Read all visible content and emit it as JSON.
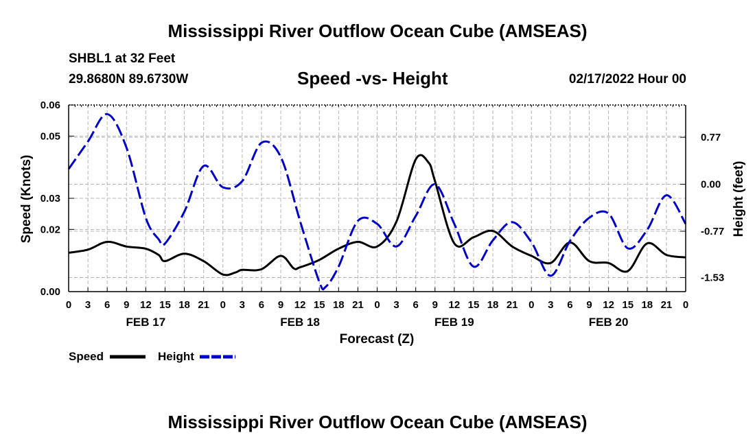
{
  "page": {
    "title_top": "Mississippi River Outflow Ocean Cube (AMSEAS)",
    "title_bottom": "Mississippi River Outflow Ocean Cube (AMSEAS)",
    "station_line": "SHBL1 at 32 Feet",
    "coords_line": "29.8680N  89.6730W",
    "date_line": "02/17/2022 Hour 00"
  },
  "chart_data": {
    "type": "line",
    "title": "Speed -vs- Height",
    "xlabel": "Forecast (Z)",
    "ylabel": "Speed (Knots)",
    "y2label": "Height (feet)",
    "x_hours": [
      0,
      96
    ],
    "x_ticks": [
      {
        "h": 0,
        "label": "0"
      },
      {
        "h": 3,
        "label": "3"
      },
      {
        "h": 6,
        "label": "6"
      },
      {
        "h": 9,
        "label": "9"
      },
      {
        "h": 12,
        "label": "12"
      },
      {
        "h": 15,
        "label": "15"
      },
      {
        "h": 18,
        "label": "18"
      },
      {
        "h": 21,
        "label": "21"
      },
      {
        "h": 24,
        "label": "0"
      },
      {
        "h": 27,
        "label": "3"
      },
      {
        "h": 30,
        "label": "6"
      },
      {
        "h": 33,
        "label": "9"
      },
      {
        "h": 36,
        "label": "12"
      },
      {
        "h": 39,
        "label": "15"
      },
      {
        "h": 42,
        "label": "18"
      },
      {
        "h": 45,
        "label": "21"
      },
      {
        "h": 48,
        "label": "0"
      },
      {
        "h": 51,
        "label": "3"
      },
      {
        "h": 54,
        "label": "6"
      },
      {
        "h": 57,
        "label": "9"
      },
      {
        "h": 60,
        "label": "12"
      },
      {
        "h": 63,
        "label": "15"
      },
      {
        "h": 66,
        "label": "18"
      },
      {
        "h": 69,
        "label": "21"
      },
      {
        "h": 72,
        "label": "0"
      },
      {
        "h": 75,
        "label": "3"
      },
      {
        "h": 78,
        "label": "6"
      },
      {
        "h": 81,
        "label": "9"
      },
      {
        "h": 84,
        "label": "12"
      },
      {
        "h": 87,
        "label": "15"
      },
      {
        "h": 90,
        "label": "18"
      },
      {
        "h": 93,
        "label": "21"
      },
      {
        "h": 96,
        "label": "0"
      }
    ],
    "day_labels": [
      {
        "h": 12,
        "label": "FEB 17"
      },
      {
        "h": 36,
        "label": "FEB 18"
      },
      {
        "h": 60,
        "label": "FEB 19"
      },
      {
        "h": 84,
        "label": "FEB 20"
      }
    ],
    "y_left": {
      "min": 0,
      "max": 0.06,
      "ticks": [
        0.0,
        0.02,
        0.03,
        0.05,
        0.06
      ],
      "tick_labels": [
        "0.00",
        "0.02",
        "0.03",
        "0.05",
        "0.06"
      ]
    },
    "y_right": {
      "min": -1.76,
      "max": 1.3,
      "ticks": [
        0.77,
        0.0,
        -0.77,
        -1.53
      ],
      "tick_labels": [
        "0.77",
        "0.00",
        "-0.77",
        "-1.53"
      ]
    },
    "series": [
      {
        "name": "Speed",
        "color": "#000000",
        "axis": "left",
        "points": [
          [
            0,
            0.0125
          ],
          [
            3,
            0.0135
          ],
          [
            6,
            0.016
          ],
          [
            9,
            0.0145
          ],
          [
            12,
            0.0138
          ],
          [
            14,
            0.0118
          ],
          [
            15,
            0.0098
          ],
          [
            18,
            0.0122
          ],
          [
            21,
            0.0098
          ],
          [
            24,
            0.0055
          ],
          [
            26,
            0.0062
          ],
          [
            27,
            0.007
          ],
          [
            30,
            0.0072
          ],
          [
            33,
            0.0115
          ],
          [
            35,
            0.0075
          ],
          [
            36,
            0.0078
          ],
          [
            39,
            0.0102
          ],
          [
            42,
            0.0138
          ],
          [
            45,
            0.016
          ],
          [
            48,
            0.0145
          ],
          [
            51,
            0.0225
          ],
          [
            54,
            0.0425
          ],
          [
            56,
            0.0415
          ],
          [
            57,
            0.0355
          ],
          [
            60,
            0.0155
          ],
          [
            63,
            0.0175
          ],
          [
            66,
            0.0195
          ],
          [
            69,
            0.0145
          ],
          [
            72,
            0.0115
          ],
          [
            75,
            0.0092
          ],
          [
            78,
            0.0158
          ],
          [
            81,
            0.0098
          ],
          [
            84,
            0.0092
          ],
          [
            87,
            0.0066
          ],
          [
            90,
            0.0155
          ],
          [
            93,
            0.0118
          ],
          [
            96,
            0.011
          ]
        ]
      },
      {
        "name": "Height",
        "color": "#0000CC",
        "axis": "right",
        "points": [
          [
            0,
            0.25
          ],
          [
            3,
            0.7
          ],
          [
            6,
            1.15
          ],
          [
            9,
            0.6
          ],
          [
            12,
            -0.55
          ],
          [
            14,
            -0.9
          ],
          [
            15,
            -0.97
          ],
          [
            18,
            -0.45
          ],
          [
            21,
            0.3
          ],
          [
            24,
            -0.05
          ],
          [
            27,
            0.05
          ],
          [
            30,
            0.68
          ],
          [
            33,
            0.45
          ],
          [
            36,
            -0.6
          ],
          [
            39,
            -1.6
          ],
          [
            40,
            -1.68
          ],
          [
            42,
            -1.35
          ],
          [
            45,
            -0.6
          ],
          [
            48,
            -0.65
          ],
          [
            51,
            -1.02
          ],
          [
            54,
            -0.52
          ],
          [
            57,
            0.0
          ],
          [
            60,
            -0.65
          ],
          [
            63,
            -1.35
          ],
          [
            66,
            -0.92
          ],
          [
            69,
            -0.62
          ],
          [
            72,
            -0.95
          ],
          [
            75,
            -1.5
          ],
          [
            78,
            -0.93
          ],
          [
            81,
            -0.55
          ],
          [
            84,
            -0.48
          ],
          [
            87,
            -1.05
          ],
          [
            90,
            -0.75
          ],
          [
            93,
            -0.18
          ],
          [
            96,
            -0.65
          ]
        ]
      }
    ],
    "legend": {
      "position": "bottom-left",
      "speed_label": "Speed",
      "height_label": "Height"
    }
  }
}
